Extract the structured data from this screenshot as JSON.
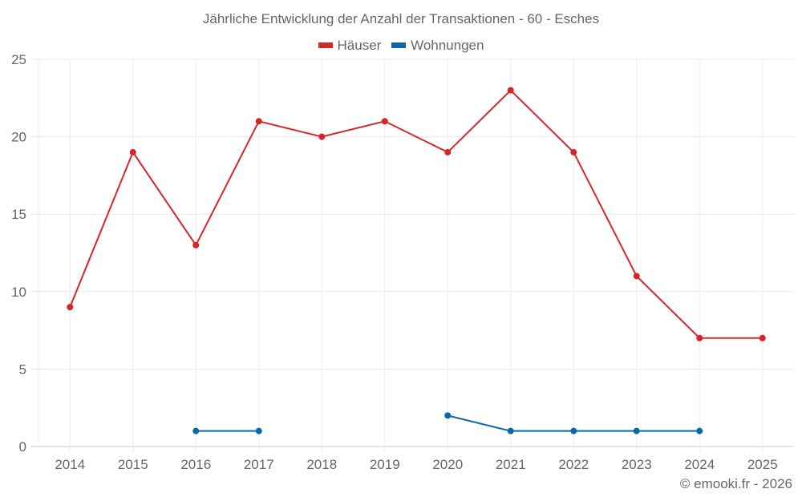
{
  "chart_data": {
    "type": "line",
    "title": "Jährliche Entwicklung der Anzahl der Transaktionen - 60 - Esches",
    "xlabel": "",
    "ylabel": "",
    "categories": [
      "2014",
      "2015",
      "2016",
      "2017",
      "2018",
      "2019",
      "2020",
      "2021",
      "2022",
      "2023",
      "2024",
      "2025"
    ],
    "ylim": [
      0,
      25
    ],
    "yticks": [
      0,
      5,
      10,
      15,
      20,
      25
    ],
    "grid": true,
    "legend_position": "top",
    "series": [
      {
        "name": "Häuser",
        "color": "#d62728",
        "values": [
          9,
          19,
          13,
          21,
          20,
          21,
          19,
          23,
          19,
          11,
          7,
          7
        ]
      },
      {
        "name": "Wohnungen",
        "color": "#0868a8",
        "values": [
          null,
          null,
          1,
          1,
          null,
          null,
          2,
          1,
          1,
          1,
          1,
          null
        ]
      }
    ]
  },
  "credit": "© emooki.fr - 2026"
}
